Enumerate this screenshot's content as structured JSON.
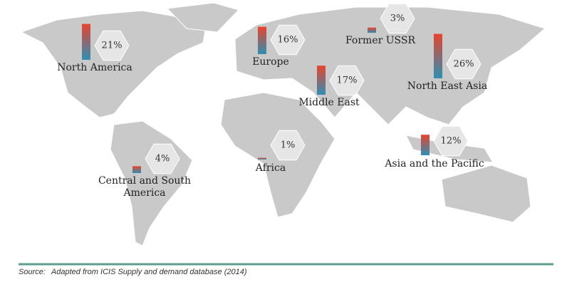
{
  "regions": [
    {
      "name": "North America",
      "value": 21,
      "value_label": "21%"
    },
    {
      "name": "Europe",
      "value": 16,
      "value_label": "16%"
    },
    {
      "name": "Former USSR",
      "value": 3,
      "value_label": "3%"
    },
    {
      "name": "Middle East",
      "value": 17,
      "value_label": "17%"
    },
    {
      "name": "North East Asia",
      "value": 26,
      "value_label": "26%"
    },
    {
      "name": "Africa",
      "value": 1,
      "value_label": "1%"
    },
    {
      "name": "Central and South America",
      "value": 4,
      "value_label": "4%"
    },
    {
      "name": "Asia and the Pacific",
      "value": 12,
      "value_label": "12%"
    }
  ],
  "source_label": "Source:",
  "source": "Adapted from ICIS Supply and demand database (2014)"
}
